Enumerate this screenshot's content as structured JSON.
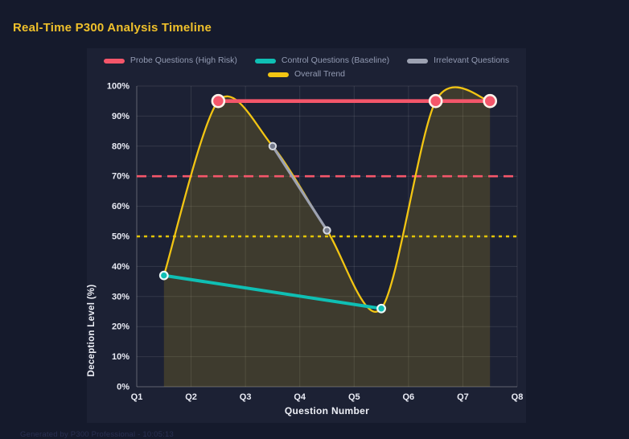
{
  "page": {
    "title": "Real-Time P300 Analysis Timeline",
    "footer": "Generated by P300 Professional - 10:05:13"
  },
  "colors": {
    "background": "#151a2c",
    "panel": "#1c2134",
    "title": "#EFC02B",
    "grid": "rgba(255,255,255,0.10)",
    "axis_border": "rgba(255,255,255,0.22)",
    "tick_label": "#E9EBF4",
    "legend_label": "#939BB3"
  },
  "chart_data": {
    "type": "line",
    "title": "Real-Time P300 Analysis Timeline",
    "xlabel": "Question Number",
    "ylabel": "Deception Level (%)",
    "x_ticks": [
      "Q1",
      "Q2",
      "Q3",
      "Q4",
      "Q5",
      "Q6",
      "Q7",
      "Q8"
    ],
    "x_range": [
      1,
      8
    ],
    "y_ticks": [
      "0%",
      "10%",
      "20%",
      "30%",
      "40%",
      "50%",
      "60%",
      "70%",
      "80%",
      "90%",
      "100%"
    ],
    "ylim": [
      0,
      100
    ],
    "grid": true,
    "legend_position": "top",
    "series": [
      {
        "id": "probe",
        "name": "Probe Questions (High Risk)",
        "color": "#F4566A",
        "line_width": 4.6,
        "marker_radius": 7.5,
        "marker_border_color": "#FBF2EA",
        "marker_border_width": 2.6,
        "points": [
          [
            2.5,
            95
          ],
          [
            6.5,
            95
          ],
          [
            7.5,
            95
          ]
        ]
      },
      {
        "id": "control",
        "name": "Control Questions (Baseline)",
        "color": "#0FBFB4",
        "line_width": 4,
        "marker_radius": 4.8,
        "marker_border_color": "#ECf9F8",
        "marker_border_width": 2.2,
        "points": [
          [
            1.5,
            37
          ],
          [
            5.5,
            26
          ]
        ]
      },
      {
        "id": "irrelevant",
        "name": "Irrelevant Questions",
        "color": "#9DA2B2",
        "line_width": 3.2,
        "marker_radius": 4.2,
        "marker_fill": "#757B8C",
        "marker_border_color": "#D7DAE2",
        "marker_border_width": 2,
        "points": [
          [
            3.5,
            80
          ],
          [
            4.5,
            52
          ]
        ]
      },
      {
        "id": "trend",
        "name": "Overall Trend",
        "color": "#F2C513",
        "line_width": 2.3,
        "curve": "spline",
        "fill_opacity": 0.16,
        "marker_radius": 0,
        "points": [
          [
            1.5,
            37
          ],
          [
            2.5,
            95
          ],
          [
            3.5,
            80
          ],
          [
            4.5,
            52
          ],
          [
            5.5,
            26
          ],
          [
            6.5,
            95
          ],
          [
            7.5,
            95
          ]
        ]
      }
    ],
    "thresholds": [
      {
        "y": 70,
        "color": "#F4566A",
        "dash": [
          12,
          7
        ],
        "width": 2.6
      },
      {
        "y": 50,
        "color": "#E2C407",
        "dash": [
          4,
          5
        ],
        "width": 2.6
      }
    ]
  }
}
